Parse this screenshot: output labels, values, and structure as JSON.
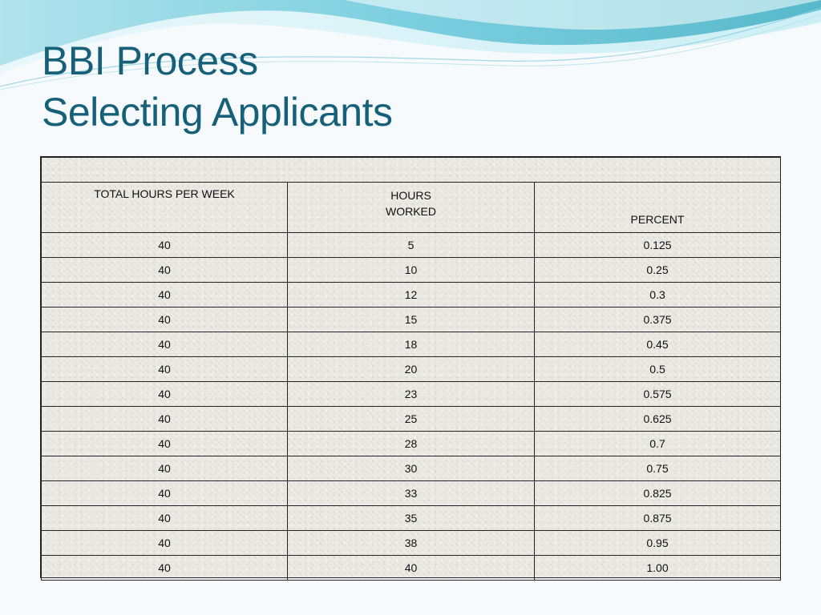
{
  "title": {
    "line1": "BBI Process",
    "line2": "Selecting Applicants"
  },
  "table": {
    "headers": {
      "col1": "TOTAL HOURS PER WEEK",
      "col2_line1": "HOURS",
      "col2_line2": "WORKED",
      "col3": "PERCENT"
    },
    "rows": [
      {
        "total": "40",
        "hours": "5",
        "percent": "0.125"
      },
      {
        "total": "40",
        "hours": "10",
        "percent": "0.25"
      },
      {
        "total": "40",
        "hours": "12",
        "percent": "0.3"
      },
      {
        "total": "40",
        "hours": "15",
        "percent": "0.375"
      },
      {
        "total": "40",
        "hours": "18",
        "percent": "0.45"
      },
      {
        "total": "40",
        "hours": "20",
        "percent": "0.5"
      },
      {
        "total": "40",
        "hours": "23",
        "percent": "0.575"
      },
      {
        "total": "40",
        "hours": "25",
        "percent": "0.625"
      },
      {
        "total": "40",
        "hours": "28",
        "percent": "0.7"
      },
      {
        "total": "40",
        "hours": "30",
        "percent": "0.75"
      },
      {
        "total": "40",
        "hours": "33",
        "percent": "0.825"
      },
      {
        "total": "40",
        "hours": "35",
        "percent": "0.875"
      },
      {
        "total": "40",
        "hours": "38",
        "percent": "0.95"
      },
      {
        "total": "40",
        "hours": "40",
        "percent": "1.00"
      }
    ]
  },
  "colors": {
    "title": "#17607a",
    "wave_light": "#bfe8f0",
    "wave_mid": "#7fd0df",
    "wave_dark": "#2fa7bd",
    "background": "#f7fafc",
    "table_texture": "#ebeae5",
    "grid": "#222222"
  }
}
